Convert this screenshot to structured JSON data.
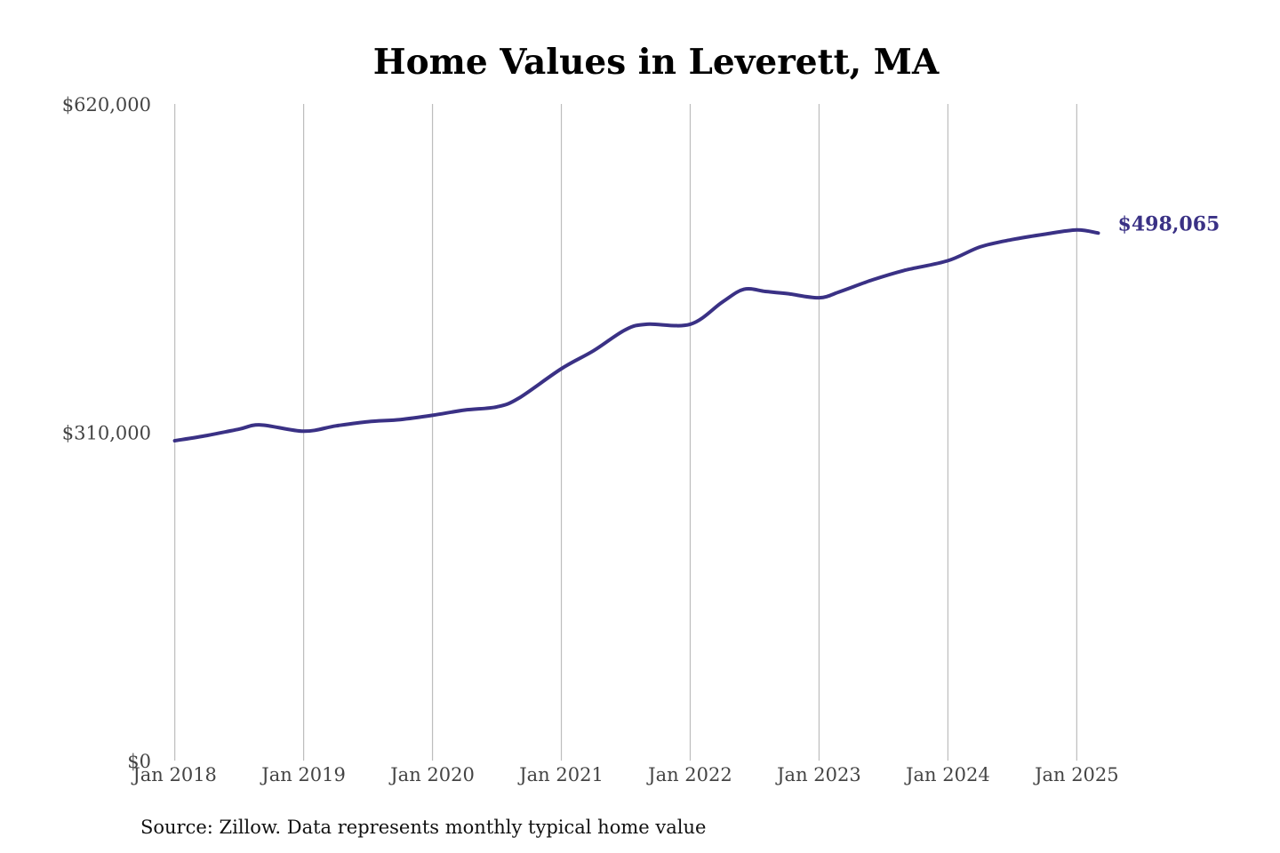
{
  "chart_data": {
    "type": "line",
    "title": "Home Values in Leverett, MA",
    "source": "Source: Zillow. Data represents monthly typical home value",
    "xlabel": "",
    "ylabel": "",
    "ylim": [
      0,
      620000
    ],
    "y_ticks": [
      {
        "value": 0,
        "label": "$0"
      },
      {
        "value": 310000,
        "label": "$310,000"
      },
      {
        "value": 620000,
        "label": "$620,000"
      }
    ],
    "x_ticks": [
      {
        "value": "2018-01",
        "label": "Jan 2018"
      },
      {
        "value": "2019-01",
        "label": "Jan 2019"
      },
      {
        "value": "2020-01",
        "label": "Jan 2020"
      },
      {
        "value": "2021-01",
        "label": "Jan 2021"
      },
      {
        "value": "2022-01",
        "label": "Jan 2022"
      },
      {
        "value": "2023-01",
        "label": "Jan 2023"
      },
      {
        "value": "2024-01",
        "label": "Jan 2024"
      },
      {
        "value": "2025-01",
        "label": "Jan 2025"
      }
    ],
    "x_range": [
      "2017-05",
      "2025-09"
    ],
    "grid": "vertical",
    "line_color": "#3a3185",
    "end_label": "$498,065",
    "series": [
      {
        "x": [
          "2018-01",
          "2018-04",
          "2018-07",
          "2018-09",
          "2019-01",
          "2019-04",
          "2019-07",
          "2019-10",
          "2020-01",
          "2020-04",
          "2020-07",
          "2020-09",
          "2021-01",
          "2021-04",
          "2021-07",
          "2021-09",
          "2022-01",
          "2022-04",
          "2022-06",
          "2022-08",
          "2022-10",
          "2023-01",
          "2023-03",
          "2023-06",
          "2023-09",
          "2024-01",
          "2024-04",
          "2024-07",
          "2024-10",
          "2025-01",
          "2025-03"
        ],
        "values": [
          302000,
          307000,
          313000,
          317000,
          311000,
          316000,
          320000,
          322000,
          326000,
          331000,
          334000,
          342000,
          370000,
          387000,
          407000,
          412000,
          412000,
          433000,
          445000,
          443000,
          441000,
          437000,
          443000,
          454000,
          463000,
          472000,
          485000,
          492000,
          497000,
          501000,
          498065
        ]
      }
    ]
  }
}
